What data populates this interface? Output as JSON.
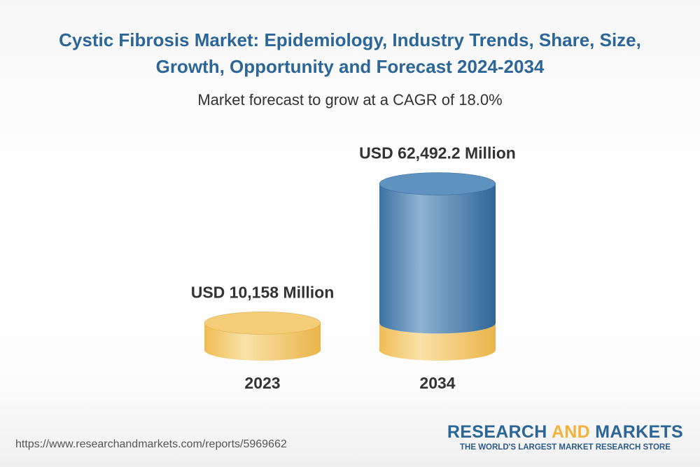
{
  "chart_data": {
    "type": "cylinder",
    "title": "Cystic Fibrosis Market: Epidemiology, Industry Trends, Share, Size, Growth, Opportunity and Forecast 2024-2034",
    "subtitle": "Market forecast to grow at a CAGR of 18.0%",
    "categories": [
      "2023",
      "2034"
    ],
    "values": [
      10158,
      62492.2
    ],
    "value_labels": [
      "USD 10,158 Million",
      "USD 62,492.2 Million"
    ],
    "colors": [
      "#f2c66c",
      "#3f78aa"
    ]
  },
  "footer": {
    "source": "https://www.researchandmarkets.com/reports/5969662",
    "logo": {
      "part1": "RESEARCH",
      "part2": "AND",
      "part3": "MARKETS",
      "tagline": "THE WORLD'S LARGEST MARKET RESEARCH STORE"
    }
  }
}
